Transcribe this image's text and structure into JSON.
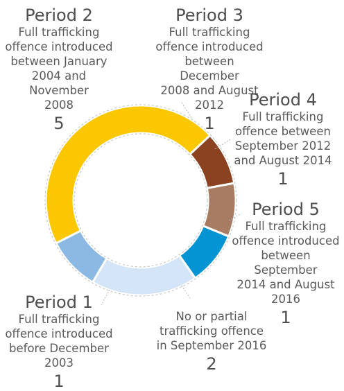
{
  "chart_data": {
    "type": "pie",
    "variant": "donut",
    "categories": [
      "Period 1",
      "Period 2",
      "Period 3",
      "Period 4",
      "Period 5",
      "No or partial trafficking offence"
    ],
    "values": [
      1,
      5,
      1,
      1,
      1,
      2
    ],
    "colors": [
      "#8cb8e4",
      "#fbc700",
      "#8b4220",
      "#a87c62",
      "#0594d3",
      "#d3e5f6"
    ],
    "slice_order_clockwise_from_bottom": [
      "No or partial trafficking offence",
      "Period 1",
      "Period 2",
      "Period 3",
      "Period 4",
      "Period 5"
    ],
    "labels": [
      {
        "id": "p1",
        "title": "Period 1",
        "description": "Full trafficking\noffence introduced\nbefore December\n2003",
        "count": "1"
      },
      {
        "id": "p2",
        "title": "Period 2",
        "description": "Full trafficking\noffence introduced\nbetween January\n2004 and November\n2008",
        "count": "5"
      },
      {
        "id": "p3",
        "title": "Period 3",
        "description": "Full trafficking\noffence introduced\nbetween December\n2008 and August\n2012",
        "count": "1"
      },
      {
        "id": "p4",
        "title": "Period 4",
        "description": "Full trafficking\noffence between\nSeptember 2012\nand August 2014",
        "count": "1"
      },
      {
        "id": "p5",
        "title": "Period 5",
        "description": "Full trafficking\noffence introduced\nbetween September\n2014 and August\n2016",
        "count": "1"
      },
      {
        "id": "no",
        "title": "",
        "description": "No or partial\ntrafficking offence\nin September 2016",
        "count": "2"
      }
    ]
  }
}
